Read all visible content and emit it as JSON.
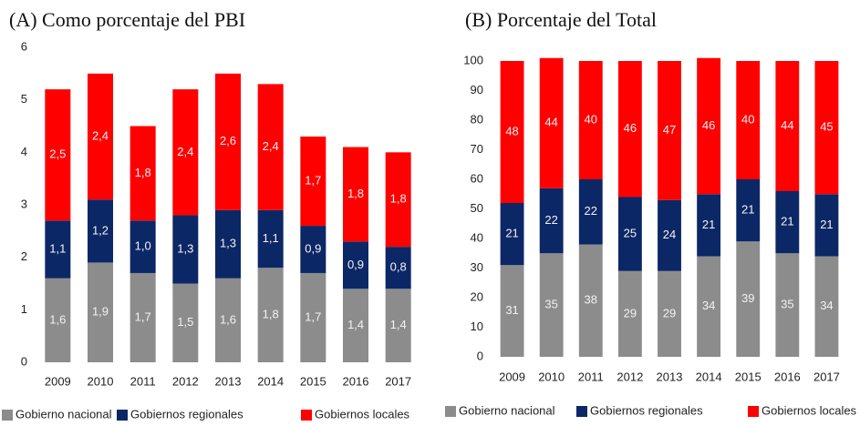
{
  "chart_data": [
    {
      "type": "stacked_bar",
      "title": "(A) Como porcentaje del PBI",
      "categories": [
        "2009",
        "2010",
        "2011",
        "2012",
        "2013",
        "2014",
        "2015",
        "2016",
        "2017"
      ],
      "series": [
        {
          "name": "Gobierno nacional",
          "color": "#8c8c8c",
          "values": [
            1.6,
            1.9,
            1.7,
            1.5,
            1.6,
            1.8,
            1.7,
            1.4,
            1.4
          ],
          "value_labels": [
            "1,6",
            "1,9",
            "1,7",
            "1,5",
            "1,6",
            "1,8",
            "1,7",
            "1,4",
            "1,4"
          ]
        },
        {
          "name": "Gobiernos regionales",
          "color": "#0c2766",
          "values": [
            1.1,
            1.2,
            1.0,
            1.3,
            1.3,
            1.1,
            0.9,
            0.9,
            0.8
          ],
          "value_labels": [
            "1,1",
            "1,2",
            "1,0",
            "1,3",
            "1,3",
            "1,1",
            "0,9",
            "0,9",
            "0,8"
          ]
        },
        {
          "name": "Gobiernos locales",
          "color": "#ff0000",
          "values": [
            2.5,
            2.4,
            1.8,
            2.4,
            2.6,
            2.4,
            1.7,
            1.8,
            1.8
          ],
          "value_labels": [
            "2,5",
            "2,4",
            "1,8",
            "2,4",
            "2,6",
            "2,4",
            "1,7",
            "1,8",
            "1,8"
          ]
        }
      ],
      "ylim": [
        0,
        6
      ],
      "yticks": [
        0,
        1,
        2,
        3,
        4,
        5,
        6
      ]
    },
    {
      "type": "stacked_bar",
      "title": "(B) Porcentaje del Total",
      "categories": [
        "2009",
        "2010",
        "2011",
        "2012",
        "2013",
        "2014",
        "2015",
        "2016",
        "2017"
      ],
      "series": [
        {
          "name": "Gobierno nacional",
          "color": "#8c8c8c",
          "values": [
            31,
            35,
            38,
            29,
            29,
            34,
            39,
            35,
            34
          ]
        },
        {
          "name": "Gobiernos regionales",
          "color": "#0c2766",
          "values": [
            21,
            22,
            22,
            25,
            24,
            21,
            21,
            21,
            21
          ]
        },
        {
          "name": "Gobiernos locales",
          "color": "#ff0000",
          "values": [
            48,
            44,
            40,
            46,
            47,
            46,
            40,
            44,
            45
          ]
        }
      ],
      "ylim": [
        0,
        100
      ],
      "yticks": [
        0,
        10,
        20,
        30,
        40,
        50,
        60,
        70,
        80,
        90,
        100
      ]
    }
  ]
}
